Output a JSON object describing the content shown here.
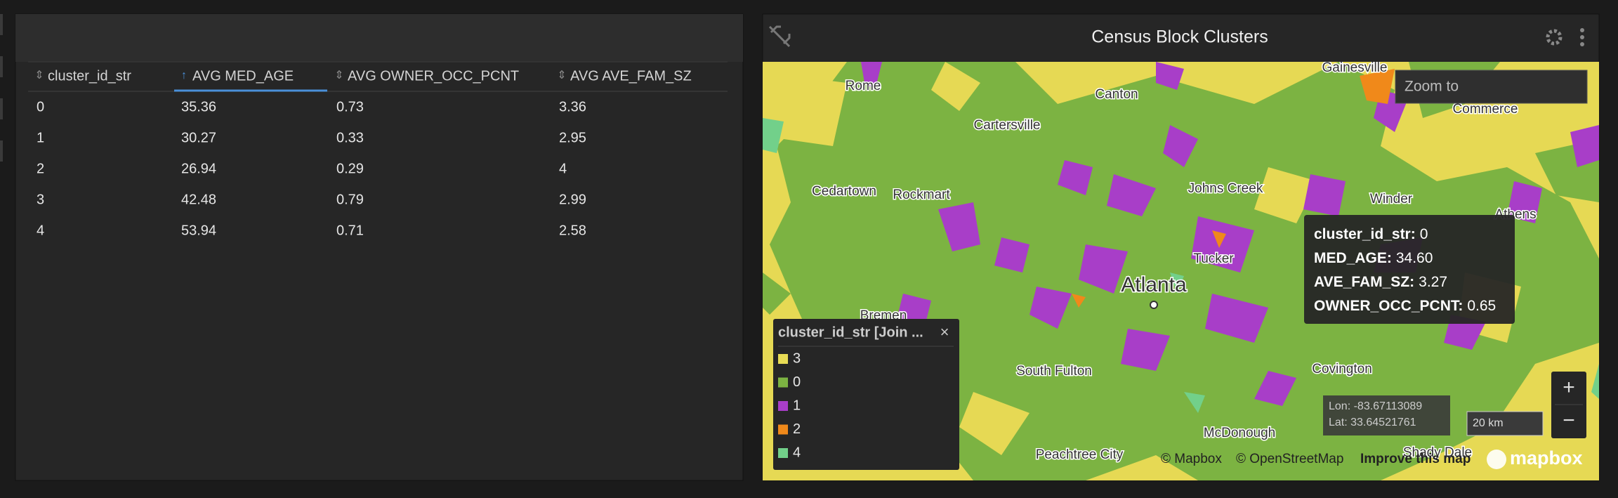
{
  "table": {
    "columns": [
      "cluster_id_str",
      "AVG MED_AGE",
      "AVG OWNER_OCC_PCNT",
      "AVG AVE_FAM_SZ"
    ],
    "rows": [
      [
        "0",
        "35.36",
        "0.73",
        "3.36"
      ],
      [
        "1",
        "30.27",
        "0.33",
        "2.95"
      ],
      [
        "2",
        "26.94",
        "0.29",
        "4"
      ],
      [
        "3",
        "42.48",
        "0.79",
        "2.99"
      ],
      [
        "4",
        "53.94",
        "0.71",
        "2.58"
      ]
    ]
  },
  "map": {
    "title": "Census Block Clusters",
    "zoom_placeholder": "Zoom to",
    "places": [
      "Rome",
      "Canton",
      "Gainesville",
      "Commerce",
      "Cartersville",
      "Johns Creek",
      "Winder",
      "Athens",
      "Cedartown",
      "Rockmart",
      "Tucker",
      "Atlanta",
      "Bremen",
      "South Fulton",
      "Covington",
      "McDonough",
      "Peachtree City",
      "Shady Dale"
    ],
    "tooltip": [
      {
        "key": "cluster_id_str:",
        "value": "0"
      },
      {
        "key": "MED_AGE:",
        "value": "34.60"
      },
      {
        "key": "AVE_FAM_SZ:",
        "value": "3.27"
      },
      {
        "key": "OWNER_OCC_PCNT:",
        "value": "0.65"
      }
    ],
    "legend": {
      "title": "cluster_id_str [Join ...",
      "items": [
        {
          "label": "3",
          "color": "#e8dc55"
        },
        {
          "label": "0",
          "color": "#7cb342"
        },
        {
          "label": "1",
          "color": "#a83ec8"
        },
        {
          "label": "2",
          "color": "#f0891a"
        },
        {
          "label": "4",
          "color": "#72d08a"
        }
      ]
    },
    "coords": {
      "lon": "Lon: -83.67113089",
      "lat": "Lat: 33.64521761"
    },
    "scale": "20 km",
    "attribution": [
      "© Mapbox",
      "© OpenStreetMap",
      "Improve this map"
    ],
    "logo": "mapbox"
  }
}
